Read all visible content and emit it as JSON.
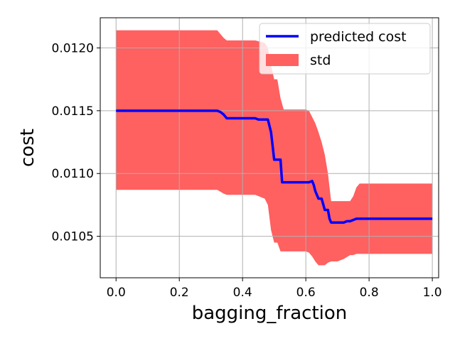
{
  "chart_data": {
    "type": "line",
    "title": "",
    "xlabel": "bagging_fraction",
    "ylabel": "cost",
    "xlim": [
      -0.05,
      1.02
    ],
    "ylim": [
      0.01017,
      0.01224
    ],
    "xticks": [
      0.0,
      0.2,
      0.4,
      0.6,
      0.8,
      1.0
    ],
    "xtick_labels": [
      "0.0",
      "0.2",
      "0.4",
      "0.6",
      "0.8",
      "1.0"
    ],
    "yticks": [
      0.0105,
      0.011,
      0.0115,
      0.012
    ],
    "ytick_labels": [
      "0.0105",
      "0.0110",
      "0.0115",
      "0.0120"
    ],
    "grid": true,
    "legend": "top-right",
    "series": [
      {
        "name": "predicted cost",
        "kind": "line",
        "color": "#0000ff",
        "x": [
          0.0,
          0.32,
          0.33,
          0.34,
          0.35,
          0.44,
          0.45,
          0.47,
          0.48,
          0.49,
          0.495,
          0.5,
          0.51,
          0.52,
          0.525,
          0.6,
          0.61,
          0.62,
          0.625,
          0.63,
          0.64,
          0.65,
          0.66,
          0.67,
          0.675,
          0.68,
          0.72,
          0.73,
          0.74,
          0.75,
          0.76,
          0.77,
          0.8,
          1.0
        ],
        "y": [
          0.0115,
          0.0115,
          0.01149,
          0.01147,
          0.01144,
          0.01144,
          0.01143,
          0.01143,
          0.01143,
          0.01133,
          0.01122,
          0.01111,
          0.01111,
          0.01111,
          0.01093,
          0.01093,
          0.01093,
          0.01094,
          0.01091,
          0.01086,
          0.0108,
          0.0108,
          0.01071,
          0.01071,
          0.01064,
          0.01061,
          0.01061,
          0.01062,
          0.01062,
          0.01063,
          0.01064,
          0.01064,
          0.01064,
          0.01064
        ]
      },
      {
        "name": "std",
        "kind": "band",
        "color": "#ff6060",
        "x": [
          0.0,
          0.32,
          0.34,
          0.35,
          0.44,
          0.47,
          0.48,
          0.49,
          0.5,
          0.51,
          0.52,
          0.53,
          0.6,
          0.61,
          0.62,
          0.63,
          0.64,
          0.65,
          0.66,
          0.67,
          0.68,
          0.7,
          0.72,
          0.74,
          0.75,
          0.76,
          0.77,
          0.8,
          1.0
        ],
        "upper": [
          0.01214,
          0.01214,
          0.01208,
          0.01206,
          0.01206,
          0.01204,
          0.012,
          0.01186,
          0.01175,
          0.01175,
          0.0116,
          0.01151,
          0.01151,
          0.0115,
          0.01145,
          0.0114,
          0.01133,
          0.01125,
          0.01115,
          0.011,
          0.01078,
          0.01078,
          0.01078,
          0.01078,
          0.01082,
          0.01089,
          0.01092,
          0.01092,
          0.01092
        ],
        "lower": [
          0.01087,
          0.01087,
          0.01084,
          0.01083,
          0.01083,
          0.0108,
          0.01075,
          0.01055,
          0.01045,
          0.01045,
          0.01038,
          0.01038,
          0.01038,
          0.01037,
          0.01034,
          0.0103,
          0.01027,
          0.01027,
          0.01027,
          0.01029,
          0.0103,
          0.0103,
          0.01032,
          0.01035,
          0.01035,
          0.01036,
          0.01036,
          0.01036,
          0.01036
        ]
      }
    ]
  }
}
